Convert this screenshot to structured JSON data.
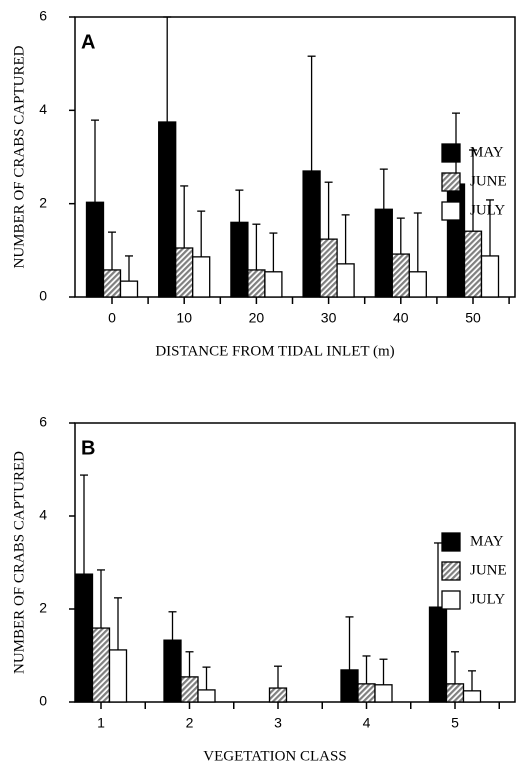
{
  "chart_data": [
    {
      "type": "bar",
      "panel_label": "A",
      "y_label": "NUMBER OF CRABS CAPTURED",
      "x_label": "DISTANCE FROM TIDAL INLET (m)",
      "categories": [
        "0",
        "10",
        "20",
        "30",
        "40",
        "50"
      ],
      "ylim": [
        0,
        6
      ],
      "yticks": [
        0,
        2,
        4,
        6
      ],
      "series": [
        {
          "name": "MAY",
          "color": "#000000",
          "values": [
            2.03,
            3.75,
            1.6,
            2.7,
            1.88,
            2.42
          ],
          "errors": [
            1.76,
            2.25,
            0.69,
            2.46,
            0.86,
            1.52
          ]
        },
        {
          "name": "JUNE",
          "color": "#7f7f7f",
          "values": [
            0.58,
            1.05,
            0.58,
            1.24,
            0.92,
            1.41
          ],
          "errors": [
            0.81,
            1.33,
            0.98,
            1.22,
            0.77,
            1.74
          ]
        },
        {
          "name": "JULY",
          "color": "#ffffff",
          "values": [
            0.34,
            0.86,
            0.54,
            0.71,
            0.54,
            0.88
          ],
          "errors": [
            0.54,
            0.98,
            0.83,
            1.05,
            1.26,
            1.2
          ]
        }
      ]
    },
    {
      "type": "bar",
      "panel_label": "B",
      "y_label": "NUMBER OF CRABS CAPTURED",
      "x_label": "VEGETATION CLASS",
      "categories": [
        "1",
        "2",
        "3",
        "4",
        "5"
      ],
      "ylim": [
        0,
        6
      ],
      "yticks": [
        0,
        2,
        4,
        6
      ],
      "series": [
        {
          "name": "MAY",
          "color": "#000000",
          "values": [
            2.75,
            1.33,
            null,
            0.69,
            2.04
          ],
          "errors": [
            2.13,
            0.61,
            null,
            1.14,
            1.38
          ]
        },
        {
          "name": "JUNE",
          "color": "#7f7f7f",
          "values": [
            1.59,
            0.54,
            0.3,
            0.39,
            0.39
          ],
          "errors": [
            1.25,
            0.54,
            0.47,
            0.6,
            0.69
          ]
        },
        {
          "name": "JULY",
          "color": "#ffffff",
          "values": [
            1.12,
            0.26,
            null,
            0.37,
            0.24
          ],
          "errors": [
            1.12,
            0.49,
            null,
            0.55,
            0.43
          ]
        }
      ]
    }
  ]
}
